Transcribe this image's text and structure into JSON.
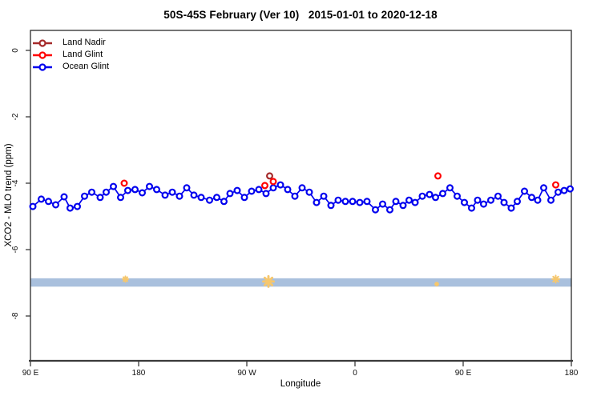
{
  "title": "50S-45S February (Ver 10)   2015-01-01 to 2020-12-18",
  "axes": {
    "x": {
      "label": "Longitude",
      "ticks": [
        {
          "lon": 90,
          "label": "90 E"
        },
        {
          "lon": 180,
          "label": "180"
        },
        {
          "lon": 270,
          "label": "90 W"
        },
        {
          "lon": 360,
          "label": "0"
        },
        {
          "lon": 450,
          "label": "90 E"
        },
        {
          "lon": 540,
          "label": "180"
        }
      ]
    },
    "y": {
      "label": "XCO2 - MLO trend (ppm)",
      "ticks": [
        {
          "val": 0,
          "label": "0"
        },
        {
          "val": -2,
          "label": "-2"
        },
        {
          "val": -4,
          "label": "-4"
        },
        {
          "val": -6,
          "label": "-6"
        },
        {
          "val": -8,
          "label": "-8"
        }
      ]
    }
  },
  "legend": {
    "items": [
      {
        "label": "Land Nadir",
        "color": "#A52A2A"
      },
      {
        "label": "Land Glint",
        "color": "#FF0000"
      },
      {
        "label": "Ocean Glint",
        "color": "#0000EE"
      }
    ]
  },
  "chart_data": {
    "type": "line",
    "title": "50S-45S February (Ver 10)   2015-01-01 to 2020-12-18",
    "xlabel": "Longitude",
    "ylabel": "XCO2 - MLO trend (ppm)",
    "x_axis_note": "longitude axis wraps eastward: 90E > 180 > 90W > 0 > 90E > 180 (stored as 90..540 deg)",
    "xlim": [
      90,
      540
    ],
    "ylim": [
      -9.35,
      0.6
    ],
    "grid": false,
    "legend_position": "top-left inside plot",
    "series": [
      {
        "name": "Land Nadir",
        "color": "#A52A2A",
        "marker": "open-circle",
        "line": false,
        "points": [
          [
            289,
            -3.78
          ]
        ]
      },
      {
        "name": "Land Glint",
        "color": "#FF0000",
        "marker": "open-circle",
        "line": false,
        "points": [
          [
            168,
            -4.0
          ],
          [
            285,
            -4.07
          ],
          [
            292,
            -3.95
          ],
          [
            429,
            -3.78
          ],
          [
            527,
            -4.05
          ]
        ]
      },
      {
        "name": "Ocean Glint",
        "color": "#0000EE",
        "marker": "open-circle",
        "line": true,
        "points": [
          [
            92,
            -4.7
          ],
          [
            99,
            -4.48
          ],
          [
            105,
            -4.55
          ],
          [
            111,
            -4.65
          ],
          [
            118,
            -4.41
          ],
          [
            123,
            -4.75
          ],
          [
            129,
            -4.7
          ],
          [
            135,
            -4.39
          ],
          [
            141,
            -4.27
          ],
          [
            148,
            -4.43
          ],
          [
            153,
            -4.27
          ],
          [
            159,
            -4.1
          ],
          [
            165,
            -4.43
          ],
          [
            171,
            -4.22
          ],
          [
            177,
            -4.19
          ],
          [
            183,
            -4.29
          ],
          [
            189,
            -4.1
          ],
          [
            195,
            -4.19
          ],
          [
            202,
            -4.36
          ],
          [
            208,
            -4.27
          ],
          [
            214,
            -4.39
          ],
          [
            220,
            -4.14
          ],
          [
            226,
            -4.36
          ],
          [
            232,
            -4.43
          ],
          [
            239,
            -4.51
          ],
          [
            245,
            -4.43
          ],
          [
            251,
            -4.55
          ],
          [
            256,
            -4.31
          ],
          [
            262,
            -4.22
          ],
          [
            268,
            -4.43
          ],
          [
            274,
            -4.24
          ],
          [
            280,
            -4.19
          ],
          [
            286,
            -4.31
          ],
          [
            292,
            -4.14
          ],
          [
            298,
            -4.05
          ],
          [
            304,
            -4.19
          ],
          [
            310,
            -4.39
          ],
          [
            316,
            -4.14
          ],
          [
            322,
            -4.27
          ],
          [
            328,
            -4.58
          ],
          [
            334,
            -4.39
          ],
          [
            340,
            -4.67
          ],
          [
            346,
            -4.51
          ],
          [
            352,
            -4.55
          ],
          [
            358,
            -4.55
          ],
          [
            364,
            -4.58
          ],
          [
            370,
            -4.55
          ],
          [
            377,
            -4.8
          ],
          [
            383,
            -4.63
          ],
          [
            389,
            -4.8
          ],
          [
            394,
            -4.55
          ],
          [
            400,
            -4.67
          ],
          [
            405,
            -4.51
          ],
          [
            410,
            -4.58
          ],
          [
            416,
            -4.39
          ],
          [
            422,
            -4.34
          ],
          [
            427,
            -4.43
          ],
          [
            433,
            -4.31
          ],
          [
            439,
            -4.14
          ],
          [
            445,
            -4.39
          ],
          [
            451,
            -4.58
          ],
          [
            457,
            -4.75
          ],
          [
            462,
            -4.51
          ],
          [
            467,
            -4.63
          ],
          [
            473,
            -4.51
          ],
          [
            479,
            -4.39
          ],
          [
            484,
            -4.58
          ],
          [
            490,
            -4.75
          ],
          [
            495,
            -4.55
          ],
          [
            501,
            -4.24
          ],
          [
            507,
            -4.43
          ],
          [
            512,
            -4.51
          ],
          [
            517,
            -4.14
          ],
          [
            523,
            -4.51
          ],
          [
            529,
            -4.27
          ],
          [
            534,
            -4.22
          ],
          [
            539,
            -4.17
          ]
        ]
      }
    ],
    "band": {
      "name": "horizontal reference band",
      "y_center": -6.99,
      "y_half_width": 0.126,
      "color": "#a9c0dd"
    },
    "band_marks": {
      "name": "orange asterisk marks on band",
      "color": "#f6c76d",
      "points": [
        {
          "lon": 169,
          "val": -6.89,
          "size": 7
        },
        {
          "lon": 288,
          "val": -6.96,
          "size": 13
        },
        {
          "lon": 428,
          "val": -7.04,
          "size": 4
        },
        {
          "lon": 527,
          "val": -6.89,
          "size": 9
        }
      ]
    }
  }
}
